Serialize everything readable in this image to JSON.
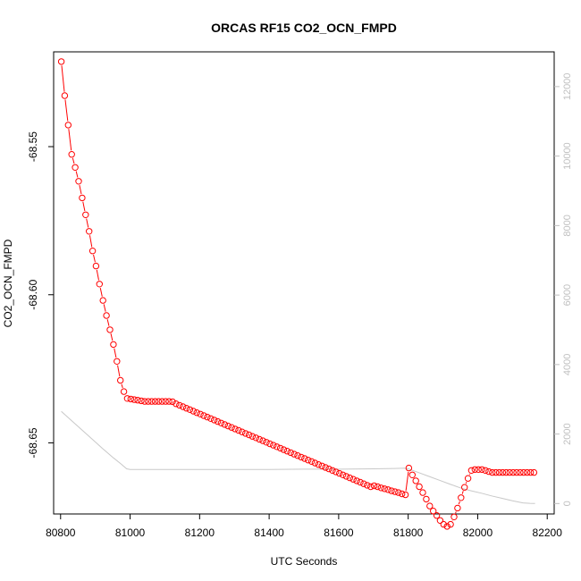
{
  "chart_data": {
    "type": "scatter",
    "title": "ORCAS RF15 CO2_OCN_FMPD",
    "xlabel": "UTC Seconds",
    "ylabel": "CO2_OCN_FMPD",
    "xlim": [
      80780,
      82220
    ],
    "ylim": [
      -68.674,
      -68.518
    ],
    "x_ticks": [
      "80800",
      "81000",
      "81200",
      "81400",
      "81600",
      "81800",
      "82000",
      "82200"
    ],
    "y_ticks": [
      "-68.55",
      "-68.60",
      "-68.65"
    ],
    "y2lim": [
      -300,
      13000
    ],
    "y2_ticks": [
      "0",
      "2000",
      "4000",
      "6000",
      "8000",
      "10000",
      "12000"
    ],
    "colors": {
      "points": "#ff0000",
      "secondary_line": "#c8c8c8",
      "frame": "#000000",
      "right_axis": "#c0c0c0"
    },
    "series": [
      {
        "marker": "open-circle",
        "x": [
          80802,
          80812,
          80822,
          80832,
          80842,
          80852,
          80862,
          80872,
          80882,
          80892,
          80902,
          80912,
          80922,
          80932,
          80942,
          80952,
          80962,
          80972,
          80982,
          80992,
          81002,
          81012,
          81022,
          81032,
          81042,
          81052,
          81062,
          81072,
          81082,
          81092,
          81102,
          81112,
          81122,
          81132,
          81142,
          81152,
          81162,
          81172,
          81182,
          81192,
          81202,
          81212,
          81222,
          81232,
          81242,
          81252,
          81262,
          81272,
          81282,
          81292,
          81302,
          81312,
          81322,
          81332,
          81342,
          81352,
          81362,
          81372,
          81382,
          81392,
          81402,
          81412,
          81422,
          81432,
          81442,
          81452,
          81462,
          81472,
          81482,
          81492,
          81502,
          81512,
          81522,
          81532,
          81542,
          81552,
          81562,
          81572,
          81582,
          81592,
          81602,
          81612,
          81622,
          81632,
          81642,
          81652,
          81662,
          81672,
          81682,
          81692,
          81702,
          81712,
          81722,
          81732,
          81742,
          81752,
          81762,
          81772,
          81782,
          81792,
          81802,
          81812,
          81822,
          81832,
          81842,
          81852,
          81862,
          81872,
          81882,
          81892,
          81902,
          81912,
          81922,
          81932,
          81942,
          81952,
          81962,
          81972,
          81982,
          81992,
          82002,
          82012,
          82022,
          82032,
          82042,
          82052,
          82062,
          82072,
          82082,
          82092,
          82102,
          82112,
          82122,
          82132,
          82142,
          82152,
          82162
        ],
        "y": [
          -68.5213,
          -68.5328,
          -68.5427,
          -68.5526,
          -68.557,
          -68.5617,
          -68.5673,
          -68.573,
          -68.5786,
          -68.5852,
          -68.5903,
          -68.5964,
          -68.6019,
          -68.607,
          -68.6118,
          -68.6168,
          -68.6225,
          -68.6289,
          -68.6327,
          -68.635,
          -68.6352,
          -68.6354,
          -68.6356,
          -68.6358,
          -68.636,
          -68.636,
          -68.636,
          -68.636,
          -68.636,
          -68.636,
          -68.636,
          -68.636,
          -68.6361,
          -68.6368,
          -68.6373,
          -68.6378,
          -68.6383,
          -68.6388,
          -68.6393,
          -68.6398,
          -68.6403,
          -68.6408,
          -68.6413,
          -68.6418,
          -68.6423,
          -68.6428,
          -68.6433,
          -68.6438,
          -68.6443,
          -68.6448,
          -68.6453,
          -68.6458,
          -68.6463,
          -68.6468,
          -68.6473,
          -68.6478,
          -68.6483,
          -68.6488,
          -68.6493,
          -68.6498,
          -68.6503,
          -68.6508,
          -68.6513,
          -68.6518,
          -68.6523,
          -68.6528,
          -68.6533,
          -68.6538,
          -68.6543,
          -68.6548,
          -68.6553,
          -68.6558,
          -68.6563,
          -68.6568,
          -68.6573,
          -68.6578,
          -68.6583,
          -68.6588,
          -68.6593,
          -68.6598,
          -68.6603,
          -68.6608,
          -68.6613,
          -68.6618,
          -68.6623,
          -68.6628,
          -68.6633,
          -68.6638,
          -68.6643,
          -68.6648,
          -68.6645,
          -68.6648,
          -68.6652,
          -68.6655,
          -68.6658,
          -68.6662,
          -68.6665,
          -68.6668,
          -68.6672,
          -68.6675,
          -68.6585,
          -68.6608,
          -68.6628,
          -68.6648,
          -68.6668,
          -68.669,
          -68.6713,
          -68.673,
          -68.6745,
          -68.6762,
          -68.6775,
          -68.6782,
          -68.6775,
          -68.675,
          -68.672,
          -68.6685,
          -68.665,
          -68.662,
          -68.6593,
          -68.659,
          -68.659,
          -68.659,
          -68.6593,
          -68.6597,
          -68.66,
          -68.66,
          -68.66,
          -68.66,
          -68.66,
          -68.66,
          -68.66,
          -68.66,
          -68.66,
          -68.66,
          -68.66,
          -68.66,
          -68.66
        ]
      },
      {
        "axis": "right",
        "line": "solid",
        "x": [
          80802,
          80830,
          80860,
          80890,
          80920,
          80950,
          80975,
          80990,
          81000,
          81100,
          81200,
          81300,
          81400,
          81500,
          81600,
          81700,
          81760,
          81790,
          81800,
          81830,
          81860,
          81890,
          81920,
          81950,
          81980,
          82010,
          82040,
          82070,
          82100,
          82130,
          82150,
          82165
        ],
        "y": [
          2650,
          2400,
          2130,
          1860,
          1590,
          1330,
          1130,
          1000,
          980,
          980,
          980,
          980,
          980,
          990,
          990,
          1000,
          1010,
          1020,
          1000,
          890,
          780,
          670,
          560,
          450,
          370,
          300,
          220,
          150,
          80,
          20,
          5,
          0
        ]
      }
    ]
  }
}
